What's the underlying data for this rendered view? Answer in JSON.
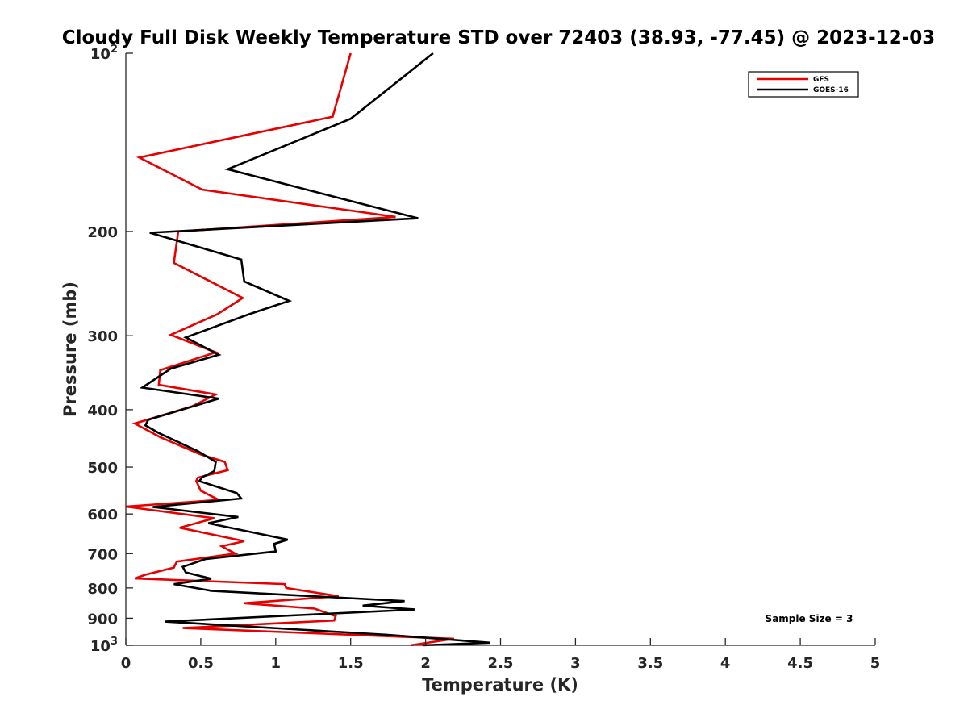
{
  "chart_data": {
    "type": "line",
    "title": "Cloudy Full Disk Weekly Temperature STD over 72403 (38.93, -77.45) @ 2023-12-03",
    "xlabel": "Temperature (K)",
    "ylabel": "Pressure (mb)",
    "xlim": [
      0,
      5
    ],
    "ylim": [
      100,
      1000
    ],
    "y_scale": "log",
    "y_reversed": true,
    "x_ticks": [
      0,
      0.5,
      1,
      1.5,
      2,
      2.5,
      3,
      3.5,
      4,
      4.5,
      5
    ],
    "x_tick_labels": [
      "0",
      "0.5",
      "1",
      "1.5",
      "2",
      "2.5",
      "3",
      "3.5",
      "4",
      "4.5",
      "5"
    ],
    "y_ticks": [
      100,
      200,
      300,
      400,
      500,
      600,
      700,
      800,
      900,
      1000
    ],
    "y_tick_labels": [
      {
        "base": "10",
        "exp": "2"
      },
      {
        "base": "200",
        "exp": ""
      },
      {
        "base": "300",
        "exp": ""
      },
      {
        "base": "400",
        "exp": ""
      },
      {
        "base": "500",
        "exp": ""
      },
      {
        "base": "600",
        "exp": ""
      },
      {
        "base": "700",
        "exp": ""
      },
      {
        "base": "800",
        "exp": ""
      },
      {
        "base": "900",
        "exp": ""
      },
      {
        "base": "10",
        "exp": "3"
      }
    ],
    "grid": false,
    "legend_position": "top-right",
    "annotation": "Sample Size = 3",
    "series": [
      {
        "name": "GFS",
        "color": "#e60000",
        "points": [
          [
            1.5,
            100
          ],
          [
            1.38,
            128
          ],
          [
            0.09,
            150
          ],
          [
            0.51,
            170
          ],
          [
            1.8,
            189
          ],
          [
            0.35,
            200
          ],
          [
            0.32,
            226
          ],
          [
            0.78,
            259
          ],
          [
            0.61,
            276
          ],
          [
            0.3,
            299
          ],
          [
            0.6,
            320
          ],
          [
            0.23,
            343
          ],
          [
            0.22,
            363
          ],
          [
            0.6,
            377
          ],
          [
            0.44,
            395
          ],
          [
            0.06,
            422
          ],
          [
            0.23,
            445
          ],
          [
            0.5,
            476
          ],
          [
            0.66,
            490
          ],
          [
            0.68,
            506
          ],
          [
            0.48,
            521
          ],
          [
            0.47,
            528
          ],
          [
            0.5,
            548
          ],
          [
            0.62,
            568
          ],
          [
            0.0,
            583
          ],
          [
            0.59,
            610
          ],
          [
            0.36,
            633
          ],
          [
            0.79,
            667
          ],
          [
            0.64,
            680
          ],
          [
            0.73,
            700
          ],
          [
            0.34,
            722
          ],
          [
            0.32,
            739
          ],
          [
            0.13,
            760
          ],
          [
            0.06,
            771
          ],
          [
            1.06,
            788
          ],
          [
            1.07,
            800
          ],
          [
            1.42,
            826
          ],
          [
            0.79,
            849
          ],
          [
            1.26,
            867
          ],
          [
            1.4,
            893
          ],
          [
            1.39,
            908
          ],
          [
            0.38,
            935
          ],
          [
            2.19,
            975
          ],
          [
            1.9,
            1000
          ]
        ]
      },
      {
        "name": "GOES-16",
        "color": "#000000",
        "points": [
          [
            2.05,
            100
          ],
          [
            1.5,
            129
          ],
          [
            0.68,
            157
          ],
          [
            1.4,
            175
          ],
          [
            1.95,
            190
          ],
          [
            0.16,
            201
          ],
          [
            0.77,
            223
          ],
          [
            0.79,
            243
          ],
          [
            1.09,
            262
          ],
          [
            0.82,
            276
          ],
          [
            0.4,
            302
          ],
          [
            0.62,
            323
          ],
          [
            0.3,
            341
          ],
          [
            0.11,
            367
          ],
          [
            0.62,
            383
          ],
          [
            0.15,
            416
          ],
          [
            0.13,
            425
          ],
          [
            0.22,
            438
          ],
          [
            0.48,
            470
          ],
          [
            0.6,
            490
          ],
          [
            0.59,
            508
          ],
          [
            0.51,
            520
          ],
          [
            0.49,
            528
          ],
          [
            0.74,
            553
          ],
          [
            0.77,
            565
          ],
          [
            0.18,
            584
          ],
          [
            0.75,
            607
          ],
          [
            0.55,
            622
          ],
          [
            1.08,
            663
          ],
          [
            0.99,
            674
          ],
          [
            1.0,
            694
          ],
          [
            0.53,
            715
          ],
          [
            0.38,
            737
          ],
          [
            0.4,
            753
          ],
          [
            0.57,
            772
          ],
          [
            0.32,
            788
          ],
          [
            0.57,
            809
          ],
          [
            1.86,
            842
          ],
          [
            1.58,
            857
          ],
          [
            1.93,
            870
          ],
          [
            0.26,
            912
          ],
          [
            1.75,
            960
          ],
          [
            2.43,
            990
          ],
          [
            1.98,
            1000
          ]
        ]
      }
    ]
  }
}
